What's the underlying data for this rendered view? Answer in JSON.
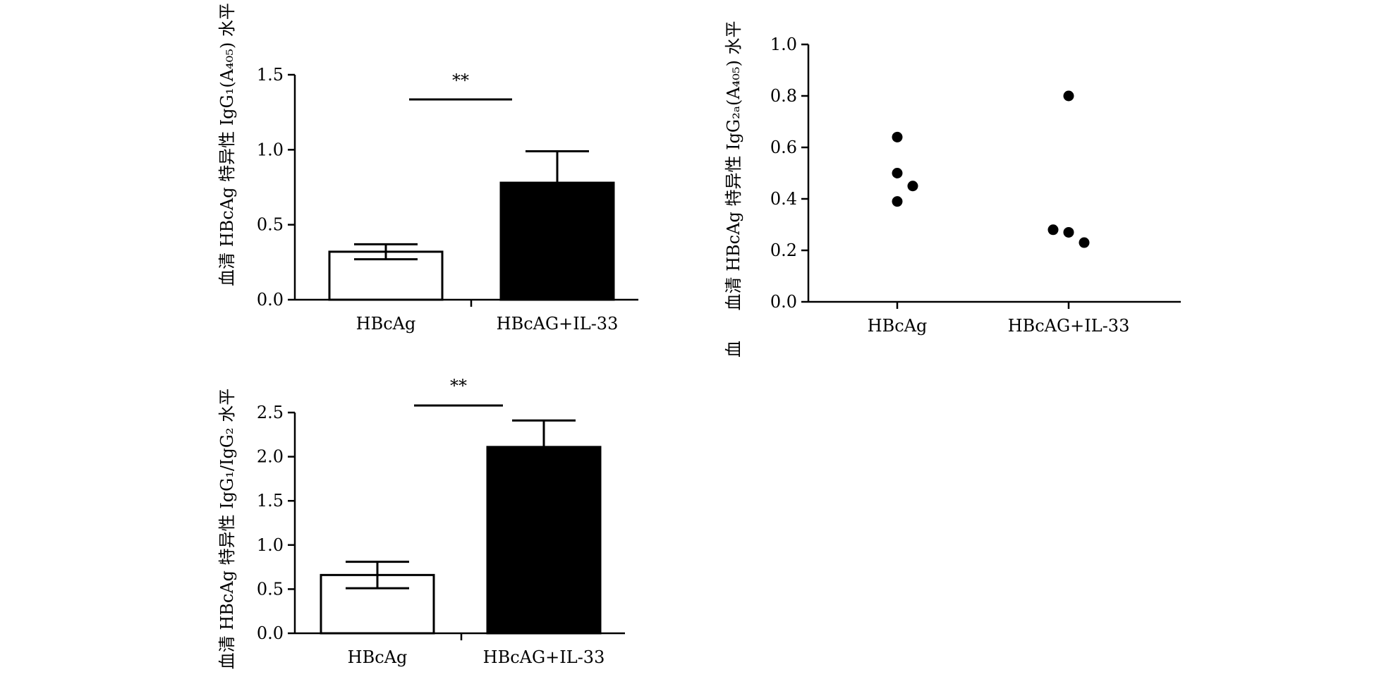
{
  "chart_data": [
    {
      "id": "chartA",
      "type": "bar",
      "ylabel": "血清 HBcAg 特异性 IgG₁(A₄₀₅) 水平",
      "categories": [
        "HBcAg",
        "HBcAG+IL-33"
      ],
      "values": [
        0.32,
        0.78
      ],
      "errors": [
        0.05,
        0.21
      ],
      "fill_colors": [
        "#ffffff",
        "#000000"
      ],
      "ylim": [
        0,
        1.5
      ],
      "yticks": [
        "0.0",
        "0.5",
        "1.0",
        "1.5"
      ],
      "significance": "**"
    },
    {
      "id": "chartB",
      "type": "scatter",
      "ylabel": "血清 HBcAg 特异性 IgG₂ₐ(A₄₀₅) 水平",
      "extra_glyph": "血",
      "categories": [
        "HBcAg",
        "HBcAG+IL-33"
      ],
      "points": [
        {
          "group": "HBcAg",
          "values": [
            0.64,
            0.5,
            0.45,
            0.39
          ]
        },
        {
          "group": "HBcAG+IL-33",
          "values": [
            0.8,
            0.28,
            0.27,
            0.23
          ]
        }
      ],
      "ylim": [
        0,
        1.0
      ],
      "yticks": [
        "0.0",
        "0.2",
        "0.4",
        "0.6",
        "0.8",
        "1.0"
      ]
    },
    {
      "id": "chartC",
      "type": "bar",
      "ylabel": "血清 HBcAg 特异性 IgG₁/IgG₂ 水平",
      "categories": [
        "HBcAg",
        "HBcAG+IL-33"
      ],
      "values": [
        0.66,
        2.11
      ],
      "errors": [
        0.15,
        0.3
      ],
      "fill_colors": [
        "#ffffff",
        "#000000"
      ],
      "ylim": [
        0,
        2.5
      ],
      "yticks": [
        "0.0",
        "0.5",
        "1.0",
        "1.5",
        "2.0",
        "2.5"
      ],
      "significance": "**"
    }
  ]
}
